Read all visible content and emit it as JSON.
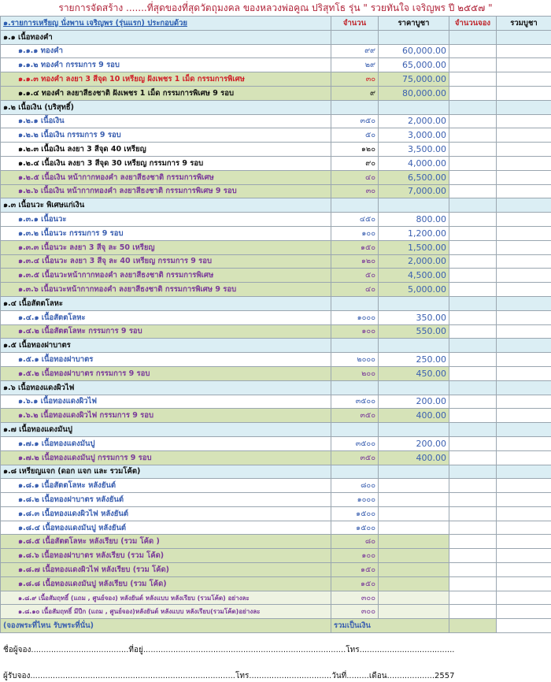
{
  "title": "รายการจัดสร้าง .......ที่สุดของที่สุดวัตถุมงคล ของหลวงพ่อคูณ ปริสุทโธ รุ่น \" รวยทันใจ เจริญพร ปี ๒๕๕๗ \"",
  "table": {
    "header": [
      "๑.รายการเหรียญ นั่งพาน  เจริญพร (รุ่นแรก) ประกอบด้วย",
      "จำนวน",
      "ราคาบูชา",
      "จำนวนจอง",
      "รวมบูชา"
    ],
    "sections": [
      {
        "label": "๑.๑ เนื้อทองคำ",
        "rows": [
          {
            "label": "๑.๑.๑  ทองคำ",
            "qty": "๙๙",
            "price": "60,000.00",
            "bg": "#ffffff",
            "color": "#3a5fb0"
          },
          {
            "label": "๑.๑.๒  ทองคำ  กรรมการ 9 รอบ",
            "qty": "๒๙",
            "price": "65,000.00",
            "bg": "#ffffff",
            "color": "#3a5fb0"
          },
          {
            "label": "๑.๑.๓    ทองคำ ลงยา 3 สีจุด 10 เหรียญ  ฝังเพชร 1 เม็ด  กรรมการพิเศษ",
            "qty": "๓๐",
            "price": "75,000.00",
            "bg": "#d6e3b8",
            "color": "#d0202a"
          },
          {
            "label": "๑.๑.๔    ทองคำ  ลงยาสีธงชาติ  ฝังเพชร 1 เม็ด  กรรมการพิเศษ 9 รอบ",
            "qty": "๙",
            "price": "80,000.00",
            "bg": "#d6e3b8",
            "color": "#111111"
          }
        ]
      },
      {
        "label": "๑.๒ เนื้อเงิน (บริสุทธิ์)",
        "rows": [
          {
            "label": "๑.๒.๑  เนื้อเงิน",
            "qty": "๓๕๐",
            "price": "2,000.00",
            "bg": "#ffffff",
            "color": "#3a5fb0"
          },
          {
            "label": "๑.๒.๒  เนื้อเงิน  กรรมการ  9 รอบ",
            "qty": "๕๐",
            "price": "3,000.00",
            "bg": "#ffffff",
            "color": "#3a5fb0"
          },
          {
            "label": "๑.๒.๓  เนื้อเงิน ลงยา 3 สีจุด 40 เหรียญ",
            "qty": "๑๒๐",
            "price": "3,500.00",
            "bg": "#ffffff",
            "color": "#111111"
          },
          {
            "label": "๑.๒.๔  เนื้อเงิน  ลงยา 3 สีจุด 30 เหรียญ   กรรมการ 9 รอบ",
            "qty": "๙๐",
            "price": "4,000.00",
            "bg": "#ffffff",
            "color": "#111111"
          },
          {
            "label": "๑.๒.๕ เนื้อเงิน หน้ากากทองคำ ลงยาสีธงชาติ กรรมการพิเศษ",
            "qty": "๔๐",
            "price": "6,500.00",
            "bg": "#d6e3b8",
            "color": "#7a3a9a"
          },
          {
            "label": "๑.๒.๖ เนื้อเงิน  หน้ากากทองคำ ลงยาสีธงชาติ กรรมการพิเศษ 9 รอบ",
            "qty": "๓๐",
            "price": "7,000.00",
            "bg": "#d6e3b8",
            "color": "#7a3a9a"
          }
        ]
      },
      {
        "label": "๑.๓ เนื้อนวะ พิเศษแก่เงิน",
        "rows": [
          {
            "label": "๑.๓.๑ เนื้อนวะ",
            "qty": "๔๕๐",
            "price": "800.00",
            "bg": "#ffffff",
            "color": "#3a5fb0"
          },
          {
            "label": "๑.๓.๒ เนื้อนวะ  กรรมการ  9 รอบ",
            "qty": "๑๐๐",
            "price": "1,200.00",
            "bg": "#ffffff",
            "color": "#3a5fb0"
          },
          {
            "label": "๑.๓.๓ เนื้อนวะ  ลงยา 3 สีจุ ละ 50 เหรียญ",
            "qty": "๑๕๐",
            "price": "1,500.00",
            "bg": "#d6e3b8",
            "color": "#7a3a9a"
          },
          {
            "label": "๑.๓.๔ เนื้อนวะ   ลงยา 3 สีจุ ละ 40 เหรียญ  กรรมการ 9 รอบ",
            "qty": "๑๒๐",
            "price": "2,000.00",
            "bg": "#d6e3b8",
            "color": "#7a3a9a"
          },
          {
            "label": "๑.๓.๕ เนื้อนวะหน้ากากทองคำ  ลงยาสีธงชาติ  กรรมการพิเศษ",
            "qty": "๕๐",
            "price": "4,500.00",
            "bg": "#d6e3b8",
            "color": "#7a3a9a"
          },
          {
            "label": "๑.๓.๖ เนื้อนวะหน้ากากทองคำ   ลงยาสีธงชาติ  กรรมการพิเศษ 9 รอบ",
            "qty": "๔๐",
            "price": "5,000.00",
            "bg": "#d6e3b8",
            "color": "#7a3a9a"
          }
        ]
      },
      {
        "label": "๑.๔ เนื้อสัตตโลหะ",
        "rows": [
          {
            "label": "๑.๔.๑ เนื้อสัตตโลหะ",
            "qty": "๑๐๐๐",
            "price": "350.00",
            "bg": "#ffffff",
            "color": "#3a5fb0"
          },
          {
            "label": "๑.๔.๒ เนื้อสัตตโลหะ   กรรมการ  9 รอบ",
            "qty": "๑๐๐",
            "price": "550.00",
            "bg": "#d6e3b8",
            "color": "#7a3a9a"
          }
        ]
      },
      {
        "label": "๑.๕ เนื้อทองฝาบาตร",
        "rows": [
          {
            "label": "๑.๕.๑ เนื้อทองฝาบาตร",
            "qty": "๒๐๐๐",
            "price": "250.00",
            "bg": "#ffffff",
            "color": "#3a5fb0"
          },
          {
            "label": "๑.๕.๒ เนื้อทองฝาบาตร   กรรมการ  9 รอบ",
            "qty": "๒๐๐",
            "price": "450.00",
            "bg": "#d6e3b8",
            "color": "#7a3a9a"
          }
        ]
      },
      {
        "label": "๑.๖ เนื้อทองแดงผิวไฟ",
        "rows": [
          {
            "label": "๑.๖.๑ เนื้อทองแดงผิวไฟ",
            "qty": "๓๕๐๐",
            "price": "200.00",
            "bg": "#ffffff",
            "color": "#3a5fb0"
          },
          {
            "label": "๑.๖.๒ เนื้อทองแดงผิวไฟ  กรรมการ   9 รอบ",
            "qty": "๓๕๐",
            "price": "400.00",
            "bg": "#d6e3b8",
            "color": "#7a3a9a"
          }
        ]
      },
      {
        "label": "๑.๗ เนื้อทองแดงมันปู",
        "rows": [
          {
            "label": "๑.๗.๑ เนื้อทองแดงมันปู",
            "qty": "๓๕๐๐",
            "price": "200.00",
            "bg": "#ffffff",
            "color": "#3a5fb0"
          },
          {
            "label": "๑.๗.๒ เนื้อทองแดงมันปู   กรรมการ 9 รอบ",
            "qty": "๓๕๐",
            "price": "400.00",
            "bg": "#d6e3b8",
            "color": "#7a3a9a"
          }
        ]
      },
      {
        "label": "๑.๘ เหรียญแจก  (ดอก แจก และ รวมโค้ต)",
        "rows": [
          {
            "label": "๑.๘.๑ เนื้อสัตตโลหะ  หลังยันต์",
            "qty": "๘๐๐",
            "bg": "#ffffff",
            "color": "#3a5fb0"
          },
          {
            "label": "๑.๘.๒ เนื้อทองฝาบาตร หลังยันต์",
            "qty": "๑๐๐๐",
            "bg": "#ffffff",
            "color": "#3a5fb0"
          },
          {
            "label": "๑.๘.๓ เนื้อทองแดงผิวไฟ  หลังยันต์",
            "qty": "๑๕๐๐",
            "bg": "#ffffff",
            "color": "#3a5fb0"
          },
          {
            "label": "๑.๘.๔ เนื้อทองแดงมันปู   หลังยันต์",
            "qty": "๑๕๐๐",
            "bg": "#ffffff",
            "color": "#3a5fb0"
          },
          {
            "label": "๑.๘.๕ เนื้อสัตตโลหะ   หลังเรียบ (รวม โค้ด )",
            "qty": "๘๐",
            "bg": "#d6e3b8",
            "color": "#7a3a9a"
          },
          {
            "label": "๑.๘.๖ เนื้อทองฝาบาตร   หลังเรียบ (รวม โค้ด)",
            "qty": "๑๐๐",
            "bg": "#d6e3b8",
            "color": "#7a3a9a"
          },
          {
            "label": "๑.๘.๗ เนื้อทองแดงผิวไฟ    หลังเรียบ (รวม โค้ด)",
            "qty": "๑๕๐",
            "bg": "#d6e3b8",
            "color": "#7a3a9a"
          },
          {
            "label": "๑.๘.๘ เนื้อทองแดงมันปู    หลังเรียบ (รวม โค้ด)",
            "qty": "๑๕๐",
            "bg": "#d6e3b8",
            "color": "#7a3a9a"
          },
          {
            "label": "๑.๘.๙ เนื้อสัมฤทธิ์  (แถม , ศูนย์จอง) หลังยันต์ หลังแบบ  หลังเรียบ (รวมโค้ด) อย่างละ",
            "qty": "๓๐๐",
            "bg": "#eef3e2",
            "color": "#7a3a9a"
          },
          {
            "label": "๑.๘.๑๐ เนื้อสัมฤทธิ์ มีปีก (แถม , ศูนย์จอง)หลังยันต์ หลังแบบ  หลังเรียบ(รวมโค้ด)อย่างละ",
            "qty": "๓๐๐",
            "bg": "#eef3e2",
            "color": "#7a3a9a"
          }
        ]
      }
    ],
    "footer": {
      "note": "(จองพระที่ไหน รับพระที่นั่น)",
      "total_label": "รวมเป็นเงิน"
    }
  },
  "form": {
    "line1": "ชื่อผู้จอง.......................................ที่อยู่.................................................................................โทร......................................",
    "line2": "ผู้รับจอง..................................................................................โทร.................................วันที่.........เดือน...................2557"
  }
}
